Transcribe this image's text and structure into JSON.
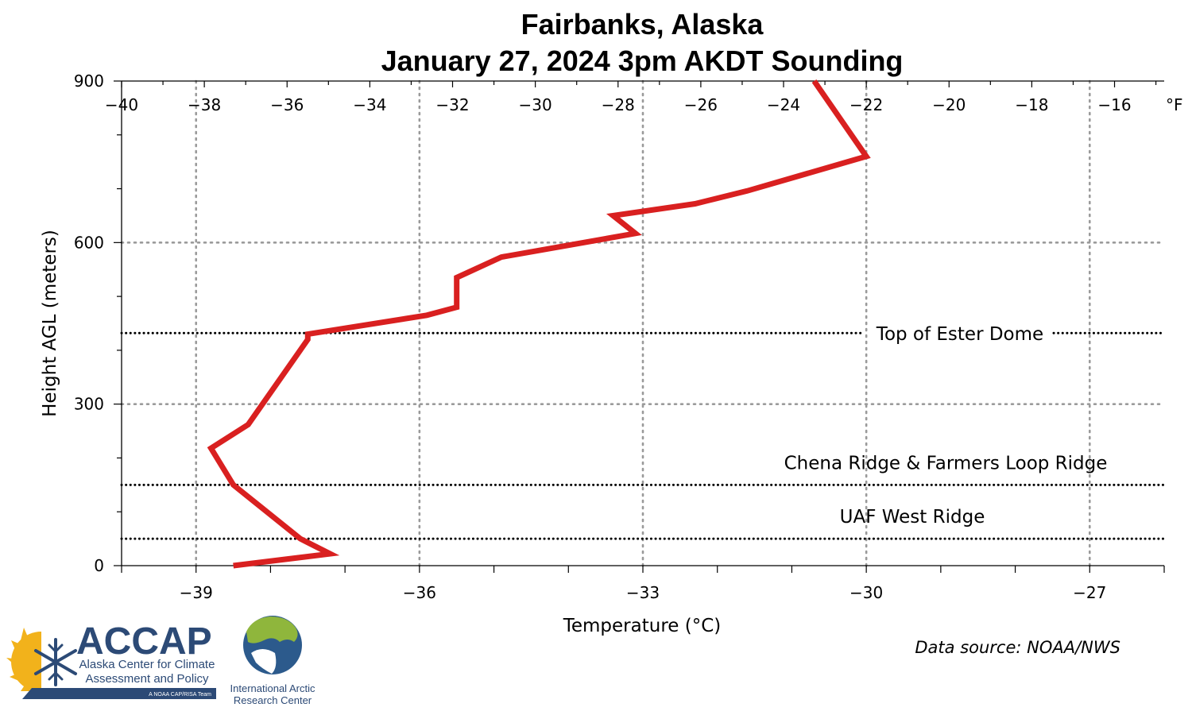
{
  "header": {
    "title_line1": "Fairbanks, Alaska",
    "title_line2": "January 27, 2024 3pm AKDT Sounding"
  },
  "chart_data": {
    "type": "line",
    "title": "Fairbanks, Alaska January 27, 2024 3pm AKDT Sounding",
    "xlabel": "Temperature (°C)",
    "ylabel": "Height AGL (meters)",
    "xlim_c": [
      -40,
      -26
    ],
    "ylim": [
      0,
      900
    ],
    "x_ticks_c": [
      -39,
      -36,
      -33,
      -30,
      -27
    ],
    "x_tick_labels_c": [
      "−39",
      "−36",
      "−33",
      "−30",
      "−27"
    ],
    "x_ticks_f": [
      -40,
      -38,
      -36,
      -34,
      -32,
      -30,
      -28,
      -26,
      -24,
      -22,
      -20,
      -18,
      -16
    ],
    "x_tick_labels_f": [
      "−40",
      "−38",
      "−36",
      "−34",
      "−32",
      "−30",
      "−28",
      "−26",
      "−24",
      "−22",
      "−20",
      "−18",
      "−16"
    ],
    "f_unit_label": "°F",
    "y_ticks": [
      0,
      300,
      600,
      900
    ],
    "y_tick_labels": [
      "0",
      "300",
      "600",
      "900"
    ],
    "grid": "dotted",
    "series": [
      {
        "color": "#d92020",
        "points": [
          {
            "t": -38.5,
            "h": 0
          },
          {
            "t": -37.2,
            "h": 22
          },
          {
            "t": -37.6,
            "h": 50
          },
          {
            "t": -38.5,
            "h": 150
          },
          {
            "t": -38.8,
            "h": 218
          },
          {
            "t": -38.3,
            "h": 262
          },
          {
            "t": -37.5,
            "h": 420
          },
          {
            "t": -37.5,
            "h": 430
          },
          {
            "t": -35.9,
            "h": 465
          },
          {
            "t": -35.5,
            "h": 480
          },
          {
            "t": -35.5,
            "h": 535
          },
          {
            "t": -34.9,
            "h": 573
          },
          {
            "t": -33.1,
            "h": 617
          },
          {
            "t": -33.4,
            "h": 650
          },
          {
            "t": -32.3,
            "h": 672
          },
          {
            "t": -31.6,
            "h": 696
          },
          {
            "t": -30.0,
            "h": 760
          },
          {
            "t": -30.7,
            "h": 900
          }
        ]
      }
    ],
    "annotations": [
      {
        "label": "Top of Ester Dome",
        "h": 432
      },
      {
        "label": "Chena Ridge & Farmers Loop Ridge",
        "h": 150
      },
      {
        "label": "UAF West Ridge",
        "h": 50
      }
    ]
  },
  "footer": {
    "source": "Data source: NOAA/NWS",
    "accap": {
      "name": "ACCAP",
      "line1": "Alaska Center for Climate",
      "line2": "Assessment and Policy",
      "tagline": "A NOAA CAP/RISA Team"
    },
    "iarc": {
      "line1": "International Arctic",
      "line2": "Research Center"
    }
  },
  "colors": {
    "line": "#d92020",
    "grid": "#9a9a9a",
    "annotation_line": "#000000",
    "brand": "#2c4a76"
  }
}
